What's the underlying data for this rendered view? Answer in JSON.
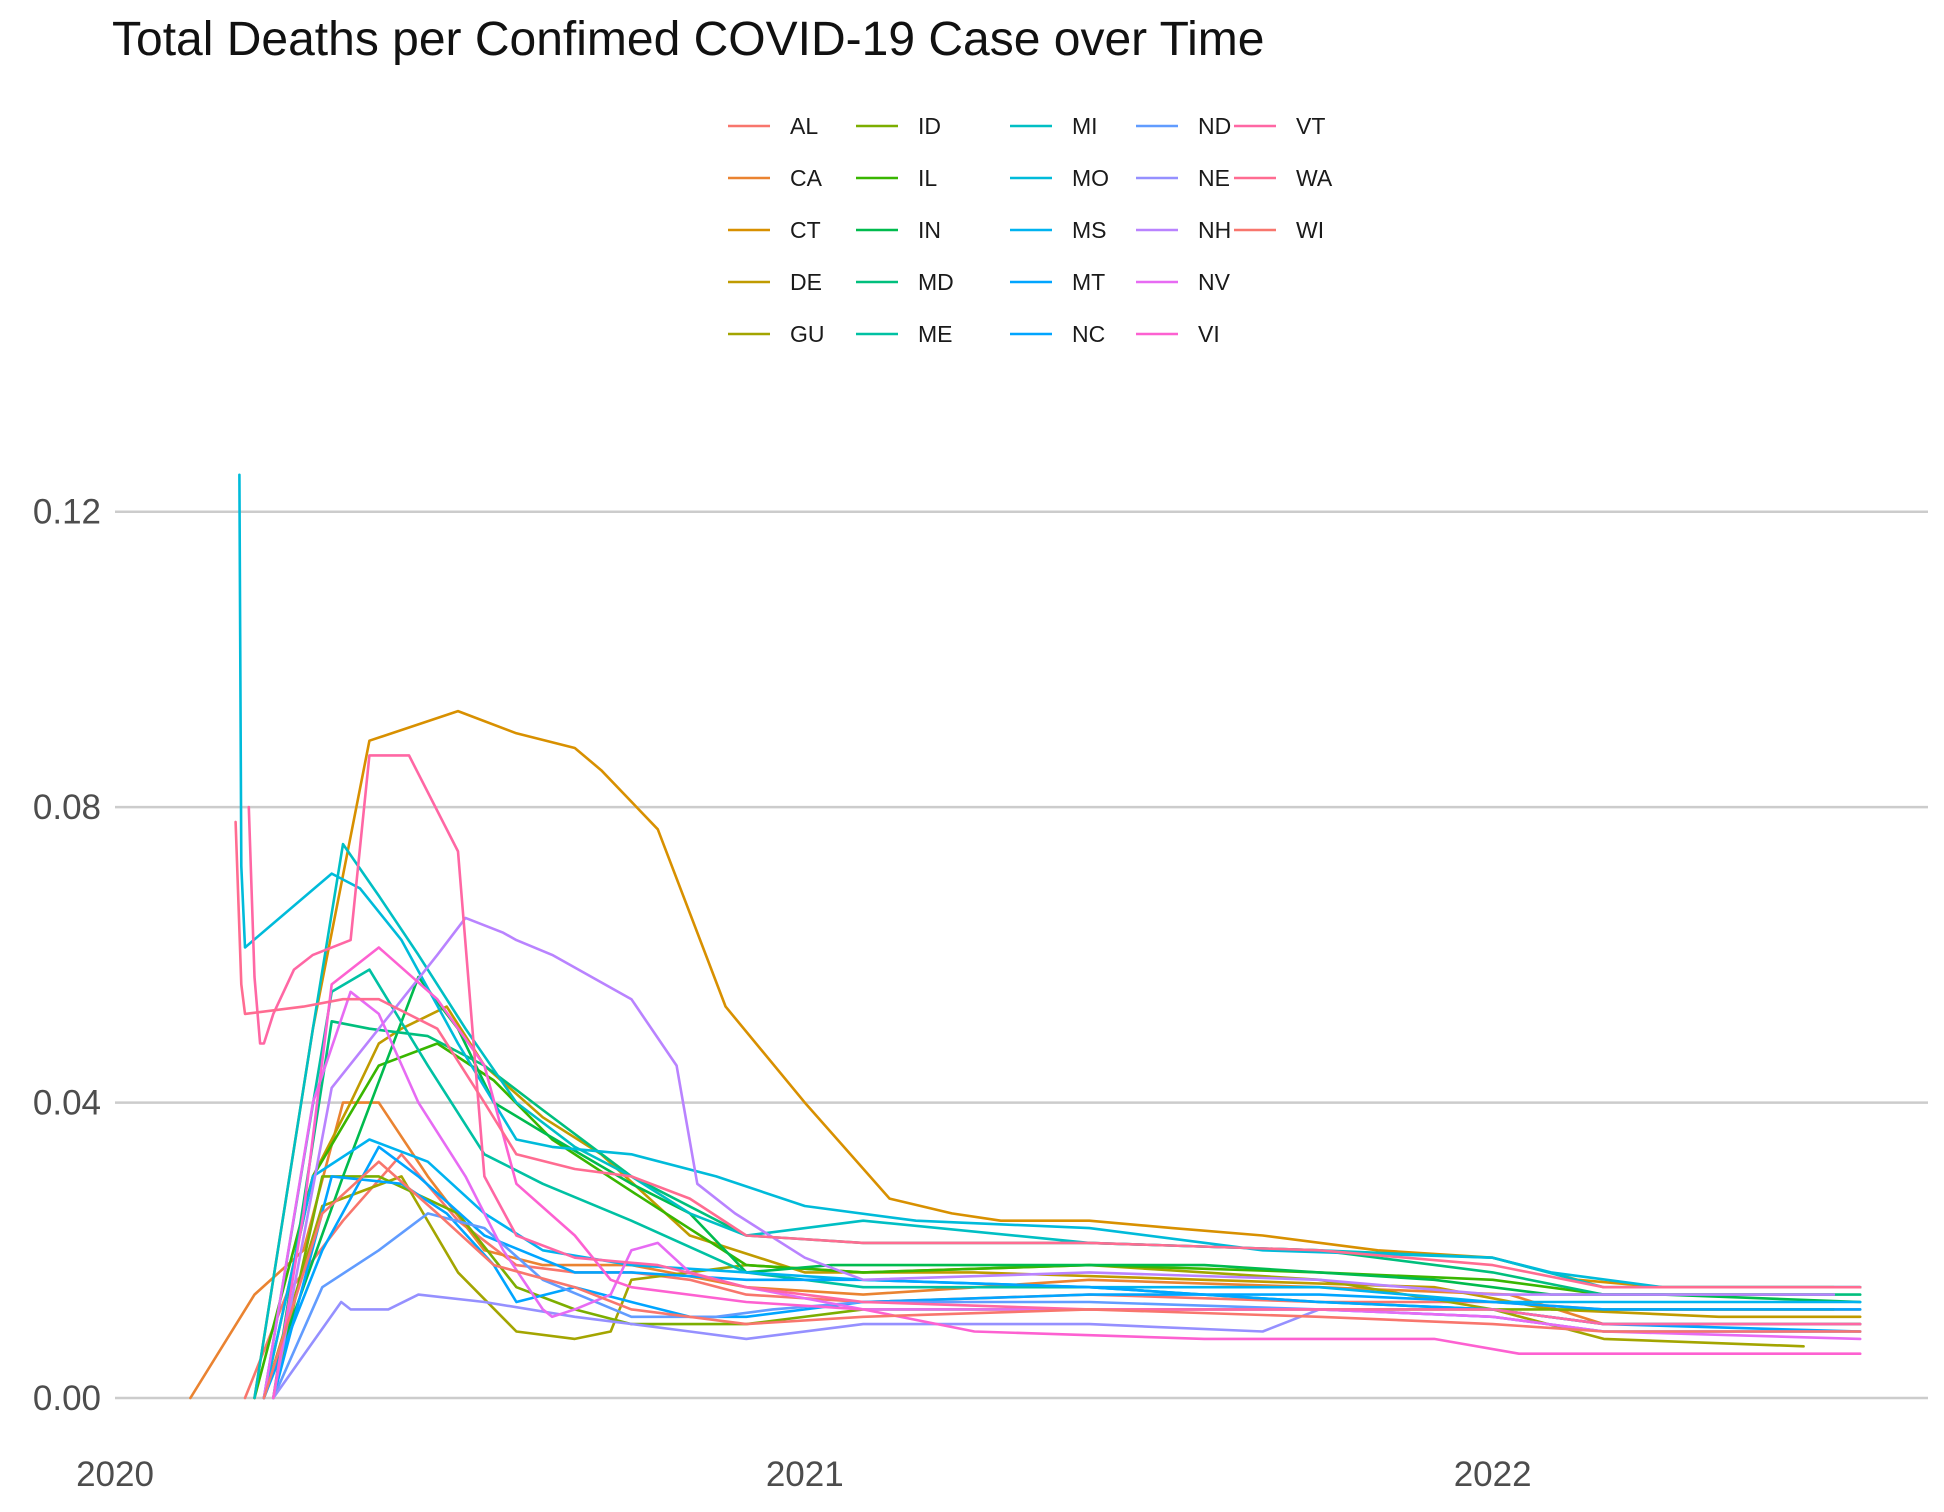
{
  "chart_data": {
    "type": "line",
    "title": "Total Deaths per Confimed COVID-19 Case over Time",
    "xlabel": "",
    "ylabel": "",
    "x_ticks": [
      "2020",
      "2021",
      "2022"
    ],
    "y_ticks": [
      "0.00",
      "0.04",
      "0.08",
      "0.12"
    ],
    "xlim": [
      "2020-01-01",
      "2022-08-20"
    ],
    "ylim": [
      0,
      0.127
    ],
    "grid": "horizontal major only",
    "legend_position": "top",
    "series": [
      {
        "name": "AL",
        "color": "#F8766D",
        "x": [
          "2020-03-10",
          "2020-04-01",
          "2020-05-01",
          "2020-06-01",
          "2020-07-01",
          "2020-08-01",
          "2020-09-01",
          "2020-10-01",
          "2020-11-01",
          "2020-12-01",
          "2021-02-01",
          "2021-06-01",
          "2021-10-01",
          "2022-01-01",
          "2022-03-01",
          "2022-07-15"
        ],
        "values": [
          0.0,
          0.014,
          0.024,
          0.033,
          0.024,
          0.018,
          0.017,
          0.017,
          0.016,
          0.014,
          0.013,
          0.014,
          0.013,
          0.013,
          0.012,
          0.012
        ]
      },
      {
        "name": "CA",
        "color": "#EA8331",
        "x": [
          "2020-02-10",
          "2020-03-15",
          "2020-04-10",
          "2020-05-01",
          "2020-05-20",
          "2020-06-15",
          "2020-07-15",
          "2020-08-15",
          "2020-10-01",
          "2020-12-01",
          "2021-02-01",
          "2021-06-01",
          "2021-10-01",
          "2022-01-10",
          "2022-03-01",
          "2022-07-15"
        ],
        "values": [
          0.0,
          0.014,
          0.02,
          0.04,
          0.04,
          0.03,
          0.02,
          0.018,
          0.018,
          0.015,
          0.014,
          0.016,
          0.015,
          0.014,
          0.01,
          0.01
        ]
      },
      {
        "name": "CT",
        "color": "#D89000",
        "x": [
          "2020-03-15",
          "2020-04-15",
          "2020-05-15",
          "2020-07-01",
          "2020-08-01",
          "2020-09-01",
          "2020-09-15",
          "2020-10-15",
          "2020-11-20",
          "2021-01-01",
          "2021-02-15",
          "2021-03-20",
          "2021-04-15",
          "2021-06-01",
          "2021-07-15",
          "2021-09-01",
          "2021-11-01",
          "2022-01-01",
          "2022-02-15",
          "2022-04-01",
          "2022-07-01"
        ],
        "values": [
          0.0,
          0.05,
          0.089,
          0.093,
          0.09,
          0.088,
          0.085,
          0.077,
          0.053,
          0.04,
          0.027,
          0.025,
          0.024,
          0.024,
          0.023,
          0.022,
          0.02,
          0.019,
          0.016,
          0.015,
          0.015
        ]
      },
      {
        "name": "DE",
        "color": "#C09B00",
        "x": [
          "2020-03-20",
          "2020-04-15",
          "2020-05-05",
          "2020-05-20",
          "2020-06-01",
          "2020-06-25",
          "2020-07-15",
          "2020-08-15",
          "2020-09-15",
          "2020-11-01",
          "2021-01-01",
          "2021-04-01",
          "2021-08-01",
          "2021-12-01",
          "2022-02-01",
          "2022-05-01",
          "2022-07-15"
        ],
        "values": [
          0.0,
          0.03,
          0.04,
          0.048,
          0.05,
          0.053,
          0.045,
          0.038,
          0.033,
          0.022,
          0.017,
          0.017,
          0.016,
          0.015,
          0.012,
          0.011,
          0.011
        ]
      },
      {
        "name": "GU",
        "color": "#A3A500",
        "x": [
          "2020-03-20",
          "2020-04-20",
          "2020-06-01",
          "2020-07-01",
          "2020-08-01",
          "2020-09-01",
          "2020-09-20",
          "2020-10-01",
          "2020-12-01",
          "2021-02-01",
          "2021-06-01",
          "2021-10-01",
          "2022-01-01",
          "2022-03-01",
          "2022-06-15"
        ],
        "values": [
          0.0,
          0.026,
          0.03,
          0.017,
          0.009,
          0.008,
          0.009,
          0.016,
          0.018,
          0.017,
          0.018,
          0.016,
          0.012,
          0.008,
          0.007
        ]
      },
      {
        "name": "ID",
        "color": "#7CAE00",
        "x": [
          "2020-03-25",
          "2020-04-20",
          "2020-05-20",
          "2020-07-01",
          "2020-08-01",
          "2020-09-01",
          "2020-10-01",
          "2020-12-01",
          "2021-02-01",
          "2021-06-01",
          "2021-10-01",
          "2022-01-01",
          "2022-03-01",
          "2022-07-01"
        ],
        "values": [
          0.0,
          0.03,
          0.03,
          0.025,
          0.015,
          0.012,
          0.01,
          0.01,
          0.012,
          0.012,
          0.012,
          0.012,
          0.012,
          0.012
        ]
      },
      {
        "name": "IL",
        "color": "#39B600",
        "x": [
          "2020-03-15",
          "2020-04-15",
          "2020-05-20",
          "2020-06-20",
          "2020-07-20",
          "2020-08-20",
          "2020-10-01",
          "2020-12-01",
          "2021-02-01",
          "2021-06-01",
          "2021-10-01",
          "2022-01-01",
          "2022-03-01",
          "2022-07-01"
        ],
        "values": [
          0.0,
          0.03,
          0.045,
          0.048,
          0.043,
          0.035,
          0.028,
          0.018,
          0.017,
          0.018,
          0.017,
          0.016,
          0.014,
          0.014
        ]
      },
      {
        "name": "IN",
        "color": "#00BB4E",
        "x": [
          "2020-03-20",
          "2020-05-01",
          "2020-06-10",
          "2020-07-01",
          "2020-07-20",
          "2020-08-15",
          "2020-10-01",
          "2020-11-01",
          "2020-12-01",
          "2021-01-15",
          "2021-04-01",
          "2021-08-01",
          "2021-12-01",
          "2022-02-01",
          "2022-04-01",
          "2022-07-15"
        ],
        "values": [
          0.0,
          0.03,
          0.057,
          0.05,
          0.04,
          0.036,
          0.029,
          0.025,
          0.017,
          0.018,
          0.018,
          0.018,
          0.016,
          0.014,
          0.014,
          0.013
        ]
      },
      {
        "name": "MD",
        "color": "#00BF7D",
        "x": [
          "2020-03-25",
          "2020-04-25",
          "2020-05-15",
          "2020-06-15",
          "2020-07-15",
          "2020-08-15",
          "2020-10-01",
          "2020-12-01",
          "2021-02-01",
          "2021-06-01",
          "2021-10-01",
          "2022-01-01",
          "2022-03-01",
          "2022-07-15"
        ],
        "values": [
          0.0,
          0.051,
          0.05,
          0.049,
          0.045,
          0.039,
          0.03,
          0.022,
          0.021,
          0.021,
          0.02,
          0.017,
          0.014,
          0.014
        ]
      },
      {
        "name": "ME",
        "color": "#00C1A3",
        "x": [
          "2020-03-20",
          "2020-04-25",
          "2020-05-15",
          "2020-06-15",
          "2020-07-15",
          "2020-08-15",
          "2020-10-01",
          "2020-12-01",
          "2021-02-01",
          "2021-06-01",
          "2021-10-01",
          "2022-01-01",
          "2022-03-01",
          "2022-07-15"
        ],
        "values": [
          0.0,
          0.055,
          0.058,
          0.045,
          0.033,
          0.029,
          0.024,
          0.017,
          0.015,
          0.015,
          0.013,
          0.012,
          0.01,
          0.01
        ]
      },
      {
        "name": "MI",
        "color": "#00BFC4",
        "x": [
          "2020-03-15",
          "2020-04-15",
          "2020-05-01",
          "2020-05-20",
          "2020-06-10",
          "2020-07-05",
          "2020-08-01",
          "2020-09-01",
          "2020-10-01",
          "2020-11-01",
          "2020-12-01",
          "2021-02-01",
          "2021-06-01",
          "2021-10-01",
          "2022-01-01",
          "2022-03-01",
          "2022-07-15"
        ],
        "values": [
          0.0,
          0.05,
          0.075,
          0.068,
          0.06,
          0.05,
          0.04,
          0.034,
          0.03,
          0.025,
          0.022,
          0.024,
          0.021,
          0.02,
          0.019,
          0.015,
          0.015
        ]
      },
      {
        "name": "MO",
        "color": "#00BBDA",
        "x": [
          "2020-03-07",
          "2020-03-08",
          "2020-03-10",
          "2020-04-25",
          "2020-05-10",
          "2020-06-01",
          "2020-07-01",
          "2020-08-01",
          "2020-08-20",
          "2020-10-01",
          "2020-11-15",
          "2021-01-01",
          "2021-03-01",
          "2021-06-01",
          "2021-09-01",
          "2022-01-01",
          "2022-02-01",
          "2022-04-01",
          "2022-07-15"
        ],
        "values": [
          0.125,
          0.072,
          0.061,
          0.071,
          0.069,
          0.062,
          0.048,
          0.035,
          0.034,
          0.033,
          0.03,
          0.026,
          0.024,
          0.023,
          0.02,
          0.019,
          0.017,
          0.015,
          0.015
        ]
      },
      {
        "name": "MS",
        "color": "#00B3F0",
        "x": [
          "2020-03-20",
          "2020-04-15",
          "2020-05-15",
          "2020-06-15",
          "2020-07-15",
          "2020-08-15",
          "2020-10-01",
          "2020-12-01",
          "2021-02-01",
          "2021-06-01",
          "2021-10-01",
          "2022-01-01",
          "2022-03-01",
          "2022-07-15"
        ],
        "values": [
          0.0,
          0.03,
          0.035,
          0.032,
          0.025,
          0.02,
          0.018,
          0.017,
          0.016,
          0.015,
          0.015,
          0.013,
          0.013,
          0.013
        ]
      },
      {
        "name": "MT",
        "color": "#00A5FF",
        "x": [
          "2020-03-25",
          "2020-04-25",
          "2020-06-01",
          "2020-06-25",
          "2020-07-20",
          "2020-08-01",
          "2020-09-01",
          "2020-10-01",
          "2020-11-01",
          "2020-12-01",
          "2021-02-01",
          "2021-06-01",
          "2021-10-01",
          "2022-01-01",
          "2022-03-01",
          "2022-07-15"
        ],
        "values": [
          0.0,
          0.03,
          0.029,
          0.025,
          0.018,
          0.013,
          0.015,
          0.013,
          0.011,
          0.011,
          0.013,
          0.014,
          0.014,
          0.013,
          0.012,
          0.012
        ]
      },
      {
        "name": "NC",
        "color": "#00A5FF",
        "x": [
          "2020-03-20",
          "2020-04-20",
          "2020-05-20",
          "2020-06-10",
          "2020-07-15",
          "2020-09-01",
          "2020-10-01",
          "2020-12-01",
          "2021-02-01",
          "2021-06-01",
          "2021-10-01",
          "2022-01-01",
          "2022-03-01",
          "2022-07-15"
        ],
        "values": [
          0.0,
          0.02,
          0.034,
          0.03,
          0.022,
          0.017,
          0.017,
          0.016,
          0.016,
          0.015,
          0.013,
          0.012,
          0.01,
          0.009
        ]
      },
      {
        "name": "ND",
        "color": "#619CFF",
        "x": [
          "2020-03-25",
          "2020-04-20",
          "2020-05-20",
          "2020-06-15",
          "2020-07-15",
          "2020-08-15",
          "2020-10-01",
          "2020-11-15",
          "2020-12-15",
          "2021-02-01",
          "2021-06-01",
          "2021-10-01",
          "2022-01-01",
          "2022-03-01",
          "2022-07-15"
        ],
        "values": [
          0.0,
          0.015,
          0.02,
          0.025,
          0.023,
          0.016,
          0.011,
          0.011,
          0.012,
          0.013,
          0.013,
          0.012,
          0.011,
          0.009,
          0.009
        ]
      },
      {
        "name": "NE",
        "color": "#9590FF",
        "x": [
          "2020-03-25",
          "2020-04-30",
          "2020-05-05",
          "2020-05-15",
          "2020-05-25",
          "2020-06-10",
          "2020-07-15",
          "2020-09-01",
          "2020-11-01",
          "2020-12-01",
          "2021-02-01",
          "2021-06-01",
          "2021-09-01",
          "2021-10-01",
          "2022-01-01",
          "2022-03-01",
          "2022-07-15"
        ],
        "values": [
          0.0,
          0.013,
          0.012,
          0.012,
          0.012,
          0.014,
          0.013,
          0.011,
          0.009,
          0.008,
          0.01,
          0.01,
          0.009,
          0.012,
          0.011,
          0.009,
          0.009
        ]
      },
      {
        "name": "NH",
        "color": "#B983FF",
        "x": [
          "2020-03-25",
          "2020-04-25",
          "2020-05-20",
          "2020-06-20",
          "2020-07-05",
          "2020-07-25",
          "2020-08-01",
          "2020-08-20",
          "2020-10-01",
          "2020-10-25",
          "2020-11-05",
          "2020-11-25",
          "2021-01-01",
          "2021-02-01",
          "2021-06-01",
          "2021-10-01",
          "2022-01-01",
          "2022-03-01",
          "2022-07-01"
        ],
        "values": [
          0.0,
          0.042,
          0.05,
          0.06,
          0.065,
          0.063,
          0.062,
          0.06,
          0.054,
          0.045,
          0.029,
          0.025,
          0.019,
          0.016,
          0.017,
          0.016,
          0.014,
          0.014,
          0.014
        ]
      },
      {
        "name": "NV",
        "color": "#E76BF3",
        "x": [
          "2020-03-20",
          "2020-04-15",
          "2020-05-05",
          "2020-05-20",
          "2020-06-10",
          "2020-07-05",
          "2020-07-25",
          "2020-08-15",
          "2020-08-20",
          "2020-09-01",
          "2020-09-20",
          "2020-10-01",
          "2020-10-15",
          "2020-11-01",
          "2020-12-01",
          "2021-02-01",
          "2021-06-01",
          "2021-10-01",
          "2022-01-01",
          "2022-03-01",
          "2022-07-15"
        ],
        "values": [
          0.0,
          0.04,
          0.055,
          0.052,
          0.04,
          0.03,
          0.02,
          0.012,
          0.011,
          0.012,
          0.014,
          0.02,
          0.021,
          0.017,
          0.015,
          0.012,
          0.012,
          0.012,
          0.011,
          0.009,
          0.008
        ]
      },
      {
        "name": "VI",
        "color": "#FD61D1",
        "x": [
          "2020-03-25",
          "2020-04-10",
          "2020-04-25",
          "2020-05-20",
          "2020-06-20",
          "2020-07-15",
          "2020-08-01",
          "2020-09-01",
          "2020-09-20",
          "2020-10-01",
          "2020-12-01",
          "2021-02-01",
          "2021-04-01",
          "2021-08-01",
          "2021-09-01",
          "2021-12-01",
          "2022-01-15",
          "2022-03-01",
          "2022-07-15"
        ],
        "values": [
          0.0,
          0.025,
          0.056,
          0.061,
          0.054,
          0.045,
          0.029,
          0.022,
          0.016,
          0.015,
          0.013,
          0.012,
          0.009,
          0.008,
          0.008,
          0.008,
          0.006,
          0.006,
          0.006
        ]
      },
      {
        "name": "VT",
        "color": "#FF67A4",
        "x": [
          "2020-03-12",
          "2020-03-15",
          "2020-03-18",
          "2020-03-20",
          "2020-03-25",
          "2020-04-05",
          "2020-04-15",
          "2020-05-05",
          "2020-05-15",
          "2020-06-05",
          "2020-07-01",
          "2020-07-15",
          "2020-08-01",
          "2020-09-01",
          "2020-10-15",
          "2020-12-01",
          "2021-02-01",
          "2021-06-01",
          "2021-10-01",
          "2022-01-01",
          "2022-03-01",
          "2022-07-15"
        ],
        "values": [
          0.08,
          0.057,
          0.048,
          0.048,
          0.052,
          0.058,
          0.06,
          0.062,
          0.087,
          0.087,
          0.074,
          0.03,
          0.022,
          0.019,
          0.018,
          0.015,
          0.013,
          0.012,
          0.012,
          0.012,
          0.01,
          0.01
        ]
      },
      {
        "name": "WA",
        "color": "#FF6C91",
        "x": [
          "2020-03-05",
          "2020-03-08",
          "2020-03-10",
          "2020-04-10",
          "2020-05-01",
          "2020-05-20",
          "2020-06-20",
          "2020-07-15",
          "2020-08-01",
          "2020-09-01",
          "2020-10-01",
          "2020-11-01",
          "2020-12-01",
          "2021-02-01",
          "2021-06-01",
          "2021-10-01",
          "2022-01-01",
          "2022-03-01",
          "2022-07-15"
        ],
        "values": [
          0.078,
          0.056,
          0.052,
          0.053,
          0.054,
          0.054,
          0.05,
          0.04,
          0.033,
          0.031,
          0.03,
          0.027,
          0.022,
          0.021,
          0.021,
          0.02,
          0.018,
          0.015,
          0.015
        ]
      },
      {
        "name": "WI",
        "color": "#F8766D",
        "x": [
          "2020-03-20",
          "2020-04-20",
          "2020-05-20",
          "2020-06-20",
          "2020-07-20",
          "2020-09-01",
          "2020-10-01",
          "2020-12-01",
          "2021-02-01",
          "2021-06-01",
          "2021-10-01",
          "2022-01-01",
          "2022-03-01",
          "2022-07-15"
        ],
        "values": [
          0.0,
          0.025,
          0.032,
          0.025,
          0.018,
          0.015,
          0.012,
          0.01,
          0.011,
          0.012,
          0.011,
          0.01,
          0.009,
          0.009
        ]
      }
    ]
  }
}
